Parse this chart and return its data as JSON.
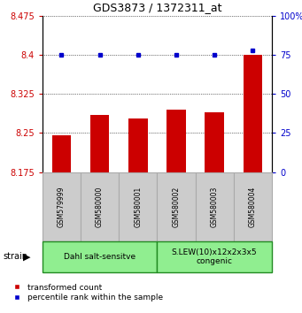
{
  "title": "GDS3873 / 1372311_at",
  "samples": [
    "GSM579999",
    "GSM580000",
    "GSM580001",
    "GSM580002",
    "GSM580003",
    "GSM580004"
  ],
  "red_values": [
    8.245,
    8.285,
    8.278,
    8.295,
    8.29,
    8.4
  ],
  "blue_values": [
    75,
    75,
    75,
    75,
    75,
    78
  ],
  "ylim_left": [
    8.175,
    8.475
  ],
  "ylim_right": [
    0,
    100
  ],
  "yticks_left": [
    8.175,
    8.25,
    8.325,
    8.4,
    8.475
  ],
  "yticks_right": [
    0,
    25,
    50,
    75,
    100
  ],
  "ytick_labels_right": [
    "0",
    "25",
    "50",
    "75",
    "100%"
  ],
  "groups": [
    {
      "label": "Dahl salt-sensitve",
      "start": 0,
      "end": 3,
      "color": "#90ee90"
    },
    {
      "label": "S.LEW(10)x12x2x3x5\ncongenic",
      "start": 3,
      "end": 6,
      "color": "#90ee90"
    }
  ],
  "bar_color": "#cc0000",
  "dot_color": "#0000cc",
  "grid_color": "#000000",
  "bg_color": "#ffffff",
  "sample_bg": "#cccccc",
  "sample_edge": "#aaaaaa",
  "group_edge": "#228B22",
  "left_tick_color": "#cc0000",
  "right_tick_color": "#0000cc",
  "legend_items": [
    "transformed count",
    "percentile rank within the sample"
  ]
}
